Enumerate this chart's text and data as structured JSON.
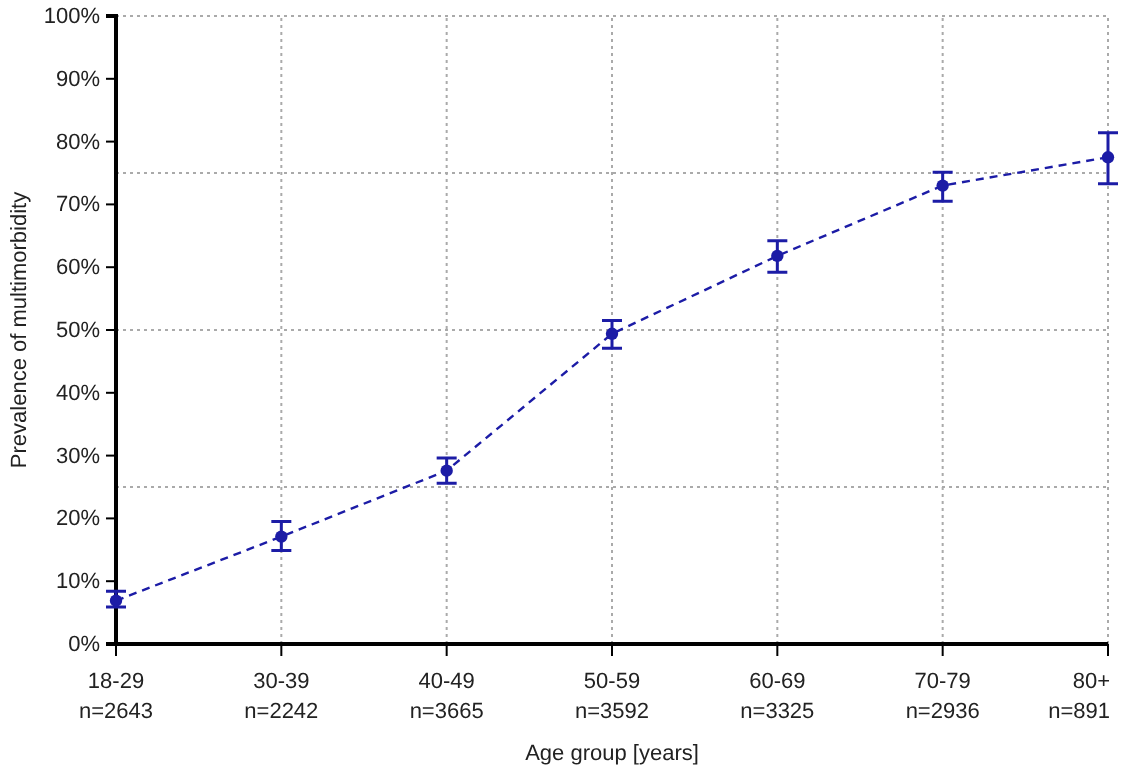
{
  "chart_data": {
    "type": "line",
    "xlabel": "Age group [years]",
    "ylabel": "Prevalence of multimorbidity",
    "categories": [
      "18-29\nn=2643",
      "30-39\nn=2242",
      "40-49\nn=3665",
      "50-59\nn=3592",
      "60-69\nn=3325",
      "70-79\nn=2936",
      "80+\nn=891"
    ],
    "series": [
      {
        "color": "#1c1ca6",
        "values": [
          6.9,
          17.1,
          27.6,
          49.4,
          61.8,
          73.0,
          77.5
        ],
        "errors": [
          [
            5.9,
            8.4
          ],
          [
            14.9,
            19.5
          ],
          [
            25.6,
            29.6
          ],
          [
            47.1,
            51.5
          ],
          [
            59.2,
            64.2
          ],
          [
            70.5,
            75.1
          ],
          [
            73.3,
            81.4
          ]
        ]
      }
    ],
    "ylim": [
      0,
      100
    ],
    "yticks": [
      {
        "value": 0,
        "label": "0%"
      },
      {
        "value": 10,
        "label": "10%"
      },
      {
        "value": 20,
        "label": "20%"
      },
      {
        "value": 30,
        "label": "30%"
      },
      {
        "value": 40,
        "label": "40%"
      },
      {
        "value": 50,
        "label": "50%"
      },
      {
        "value": 60,
        "label": "60%"
      },
      {
        "value": 70,
        "label": "70%"
      },
      {
        "value": 80,
        "label": "80%"
      },
      {
        "value": 90,
        "label": "90%"
      },
      {
        "value": 100,
        "label": "100%"
      }
    ],
    "grid": "x",
    "marker": "circle",
    "line_style": "dashed",
    "ref_lines": [
      {
        "axis": "y",
        "value": 25,
        "color": "#aaaaaa",
        "line_style": "dotted"
      },
      {
        "axis": "y",
        "value": 50,
        "color": "#aaaaaa",
        "line_style": "dotted"
      },
      {
        "axis": "y",
        "value": 75,
        "color": "#aaaaaa",
        "line_style": "dotted"
      }
    ]
  }
}
